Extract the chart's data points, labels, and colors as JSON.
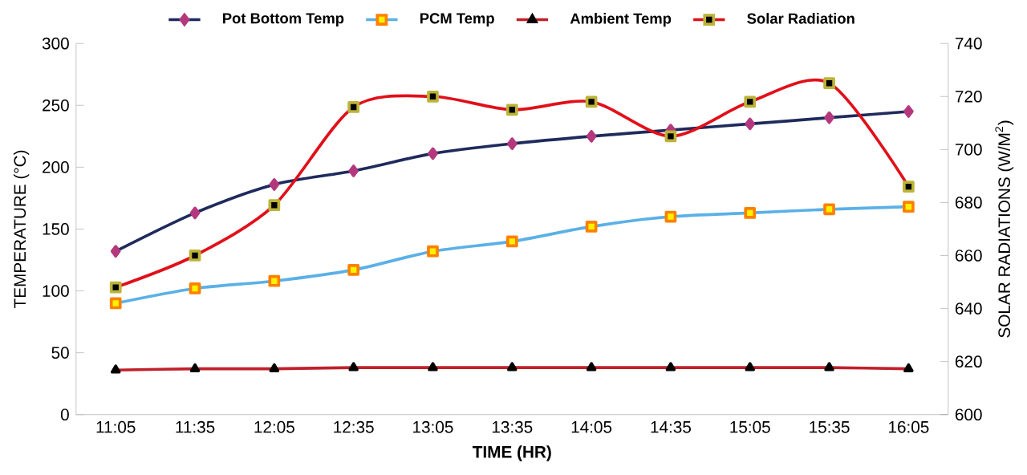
{
  "chart_data": {
    "type": "line",
    "xlabel": "TIME (HR)",
    "ylabel": "TEMPERATURE (°C)",
    "y2label": "SOLAR RADIATIONS (W/M$^{2}$)",
    "categories": [
      "11:05",
      "11:35",
      "12:05",
      "12:35",
      "13:05",
      "13:35",
      "14:05",
      "14:35",
      "15:05",
      "15:35",
      "16:05"
    ],
    "series": [
      {
        "name": "Pot Bottom Temp",
        "color": "#1f2a5c",
        "marker": "diamond",
        "values": [
          132,
          163,
          186,
          197,
          211,
          219,
          225,
          230,
          235,
          240,
          245
        ]
      },
      {
        "name": "PCM Temp",
        "color": "#5bb0e6",
        "marker": "square",
        "values": [
          90,
          102,
          108,
          117,
          132,
          140,
          152,
          160,
          163,
          166,
          168
        ]
      },
      {
        "name": "Ambient Temp",
        "color": "#c0202a",
        "marker": "triangle",
        "values": [
          36,
          37,
          37,
          38,
          38,
          38,
          38,
          38,
          38,
          38,
          37
        ]
      },
      {
        "name": "Solar Radiation",
        "color": "#e0101a",
        "marker": "square",
        "axis": "y2",
        "values": [
          648,
          660,
          679,
          716,
          720,
          715,
          718,
          705,
          718,
          725,
          686
        ]
      }
    ],
    "ylim": [
      0,
      300
    ],
    "yticks": [
      0,
      50,
      100,
      150,
      200,
      250,
      300
    ],
    "y2lim": [
      600,
      740
    ],
    "y2ticks": [
      600,
      620,
      640,
      660,
      680,
      700,
      720,
      740
    ],
    "legend": "top",
    "line_style": "solid"
  }
}
